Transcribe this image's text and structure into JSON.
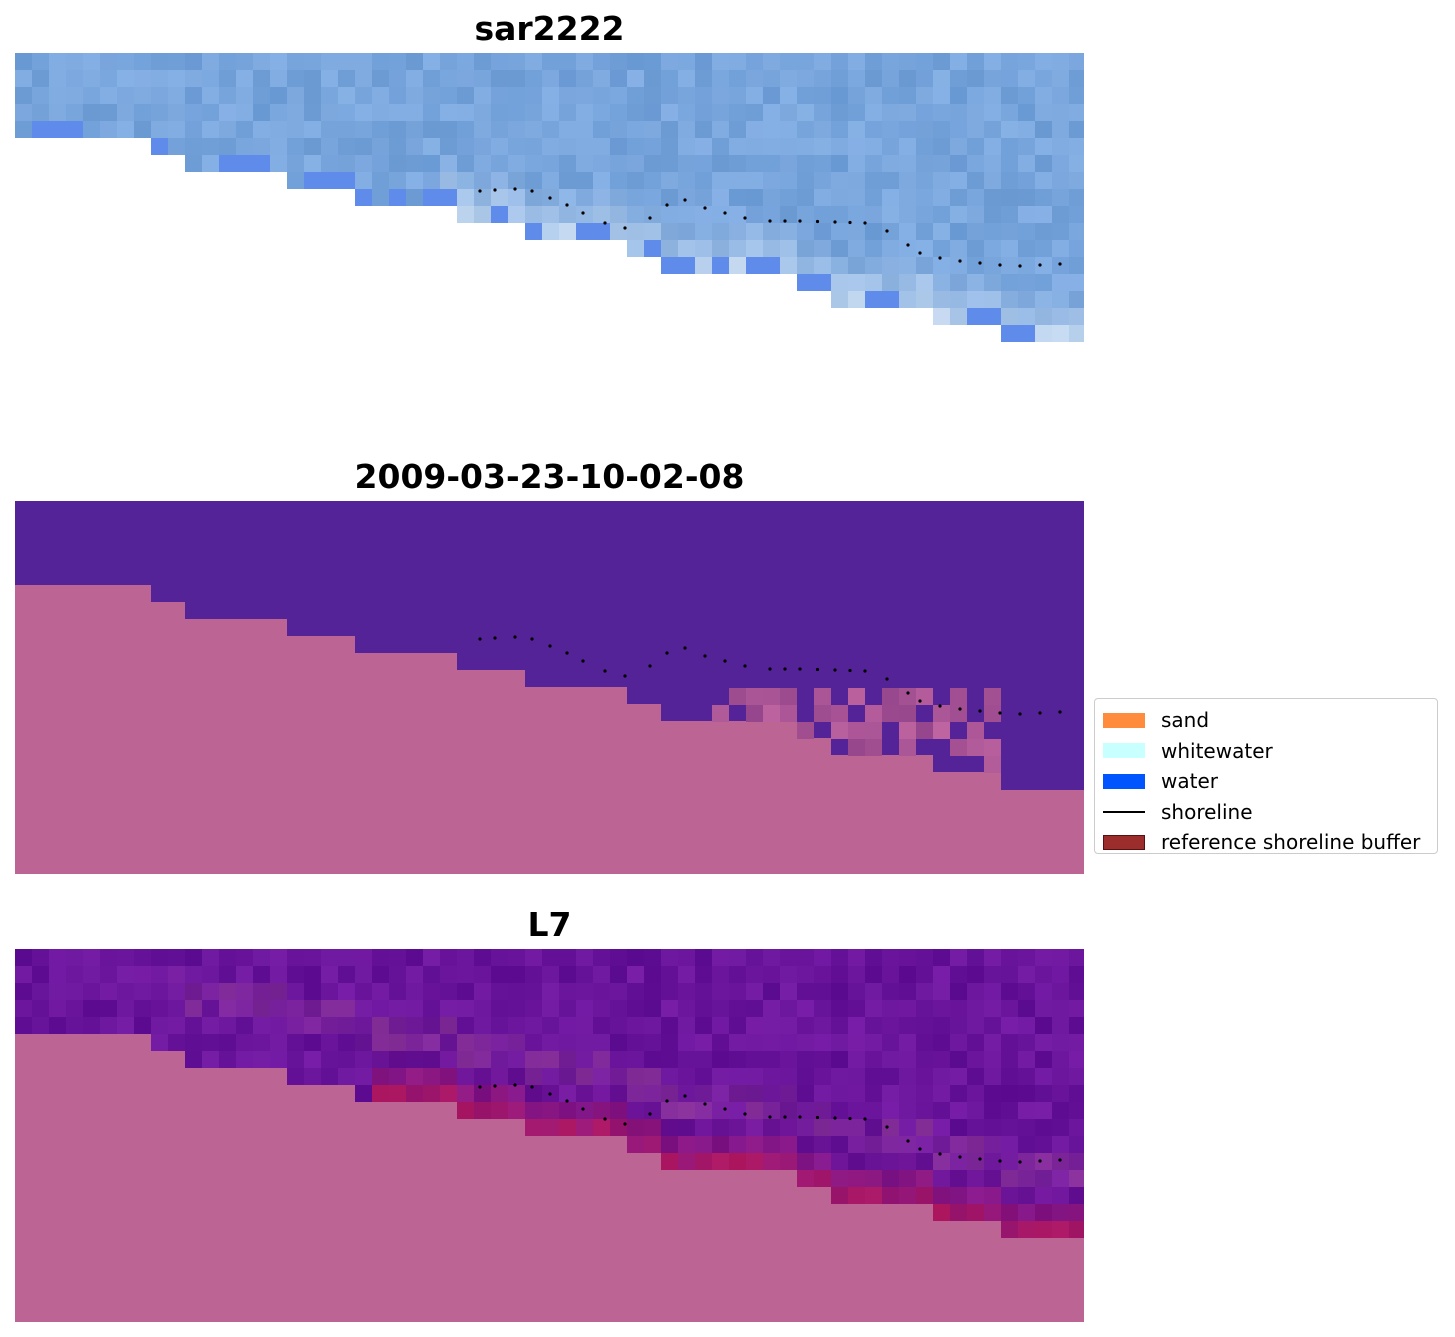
{
  "panels": [
    {
      "title": "sar2222",
      "style": "rgb"
    },
    {
      "title": "2009-03-23-10-02-08",
      "style": "classified"
    },
    {
      "title": "L7",
      "style": "index"
    }
  ],
  "legend": {
    "placement": "center-right",
    "items": [
      {
        "label": "sand",
        "kind": "patch",
        "color": "#ff8c3c"
      },
      {
        "label": "whitewater",
        "kind": "patch",
        "color": "#c8ffff"
      },
      {
        "label": "water",
        "kind": "patch",
        "color": "#0055ff"
      },
      {
        "label": "shoreline",
        "kind": "line",
        "color": "#000000"
      },
      {
        "label": "reference shoreline buffer",
        "kind": "patch",
        "color": "#9b2d2d"
      }
    ]
  },
  "colors": {
    "land": "#bc6494",
    "water_class": "#552398",
    "shoreline_dots": "#000000"
  }
}
